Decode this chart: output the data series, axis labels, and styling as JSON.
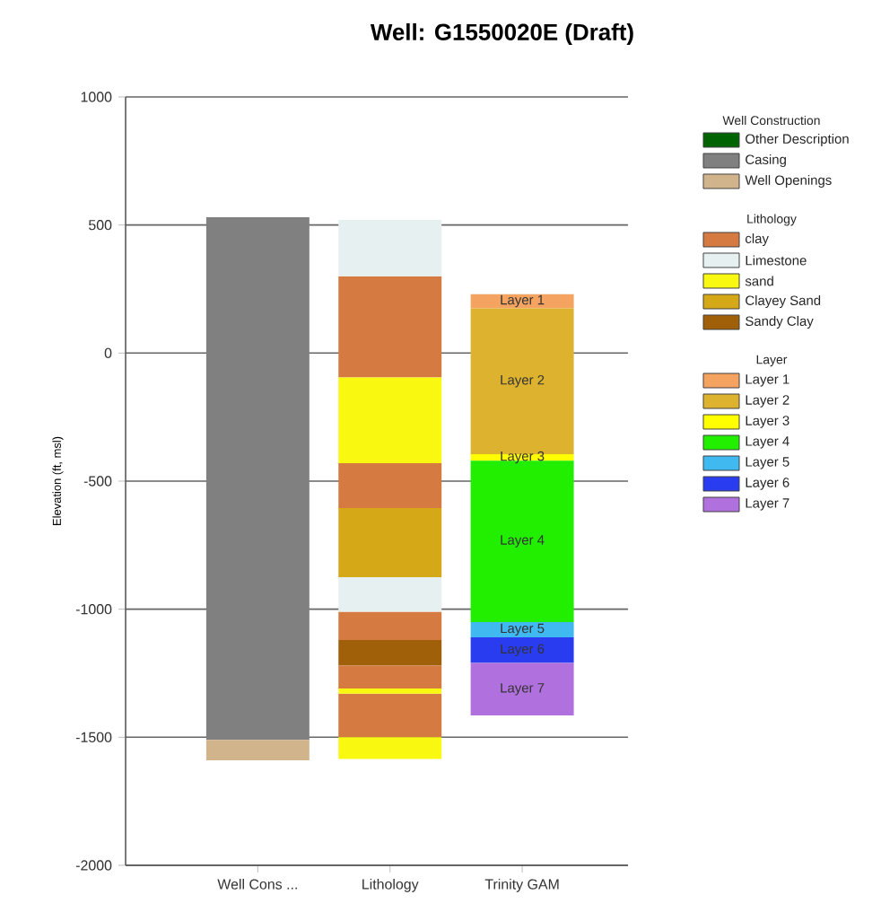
{
  "chart_data": {
    "type": "bar",
    "title": "Well: G1550020E (Draft)",
    "ylabel": "Elevation (ft, msl)",
    "categories": [
      "Well Cons ...",
      "Lithology",
      "Trinity GAM"
    ],
    "ylim": [
      -2000,
      1000
    ],
    "yticks": [
      -2000,
      -1500,
      -1000,
      -500,
      0,
      500,
      1000
    ],
    "grid": "y",
    "legend": "right",
    "annotations": [
      "Well Construction",
      "Lithology",
      "Layer"
    ],
    "series": [
      {
        "name": "Other Description",
        "color": "#006400",
        "values": [
          null,
          null,
          null
        ],
        "base": [
          null,
          null,
          null
        ]
      },
      {
        "name": "Casing",
        "color": "#808080",
        "values": [
          2040,
          null,
          null
        ],
        "base": [
          -1510,
          null,
          null
        ]
      },
      {
        "name": "Well Openings",
        "color": "#d2b48c",
        "values": [
          80,
          null,
          null
        ],
        "base": [
          -1590,
          null,
          null
        ]
      },
      {
        "name": "clay",
        "color": "#d57a40",
        "values": [
          null,
          395,
          null
        ],
        "base": [
          null,
          -95,
          null
        ]
      },
      {
        "name": "Limestone",
        "color": "#e6f0f0",
        "values": [
          null,
          220,
          null
        ],
        "base": [
          null,
          300,
          null
        ]
      },
      {
        "name": "sand",
        "color": "#f8f810",
        "values": [
          null,
          335,
          null
        ],
        "base": [
          null,
          -430,
          null
        ]
      },
      {
        "name": "Clayey Sand",
        "color": "#d4a816",
        "values": [
          null,
          270,
          null
        ],
        "base": [
          null,
          -875,
          null
        ]
      },
      {
        "name": "Sandy Clay",
        "color": "#a0600a",
        "values": [
          null,
          100,
          null
        ],
        "base": [
          null,
          -1220,
          null
        ]
      },
      {
        "name": "Layer 1",
        "color": "#f4a460",
        "values": [
          null,
          null,
          55
        ],
        "base": [
          null,
          null,
          175
        ],
        "value_labels": [
          null,
          null,
          "Layer 1"
        ]
      },
      {
        "name": "Layer 2",
        "color": "#ddb22f",
        "values": [
          null,
          null,
          570
        ],
        "base": [
          null,
          null,
          -395
        ],
        "value_labels": [
          null,
          null,
          "Layer 2"
        ]
      },
      {
        "name": "Layer 3",
        "color": "#ffff00",
        "values": [
          null,
          null,
          25
        ],
        "base": [
          null,
          null,
          -420
        ],
        "value_labels": [
          null,
          null,
          "Layer 3"
        ]
      },
      {
        "name": "Layer 4",
        "color": "#22ee00",
        "values": [
          null,
          null,
          630
        ],
        "base": [
          null,
          null,
          -1050
        ],
        "value_labels": [
          null,
          null,
          "Layer 4"
        ]
      },
      {
        "name": "Layer 5",
        "color": "#40b8f0",
        "values": [
          null,
          null,
          60
        ],
        "base": [
          null,
          null,
          -1110
        ],
        "value_labels": [
          null,
          null,
          "Layer 5"
        ]
      },
      {
        "name": "Layer 6",
        "color": "#2a3cf0",
        "values": [
          null,
          null,
          100
        ],
        "base": [
          null,
          null,
          -1210
        ],
        "value_labels": [
          null,
          null,
          "Layer 6"
        ]
      },
      {
        "name": "Layer 7",
        "color": "#b070dd",
        "values": [
          null,
          null,
          205
        ],
        "base": [
          null,
          null,
          -1415
        ],
        "value_labels": [
          null,
          null,
          "Layer 7"
        ]
      },
      {
        "color": "#d57a40",
        "values": [
          null,
          175,
          null
        ],
        "base": [
          null,
          -605,
          null
        ]
      },
      {
        "color": "#d57a40",
        "values": [
          null,
          110,
          null
        ],
        "base": [
          null,
          -1120,
          null
        ]
      },
      {
        "color": "#d57a40",
        "values": [
          null,
          90,
          null
        ],
        "base": [
          null,
          -1310,
          null
        ]
      },
      {
        "color": "#d57a40",
        "values": [
          null,
          170,
          null
        ],
        "base": [
          null,
          -1500,
          null
        ]
      },
      {
        "color": "#e6f0f0",
        "values": [
          null,
          135,
          null
        ],
        "base": [
          null,
          -1010,
          null
        ]
      },
      {
        "color": "#f8f810",
        "values": [
          null,
          20,
          null
        ],
        "base": [
          null,
          -1330,
          null
        ]
      },
      {
        "color": "#f8f810",
        "values": [
          null,
          85,
          null
        ],
        "base": [
          null,
          -1585,
          null
        ]
      }
    ]
  }
}
